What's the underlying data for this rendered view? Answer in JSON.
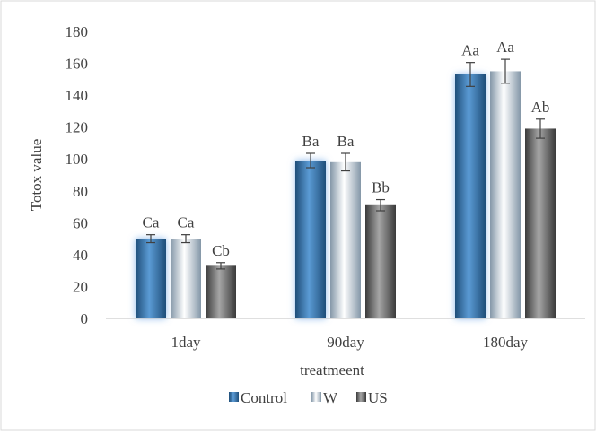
{
  "chart_data": {
    "type": "bar",
    "title": "",
    "xlabel": "treatmeent",
    "ylabel": "Totox value",
    "ylim": [
      0,
      180
    ],
    "yticks": [
      0,
      20,
      40,
      60,
      80,
      100,
      120,
      140,
      160,
      180
    ],
    "categories": [
      "1day",
      "90day",
      "180day"
    ],
    "grid": false,
    "legend_position": "bottom",
    "series": [
      {
        "name": "Control",
        "values": [
          50,
          99,
          153
        ],
        "errors": [
          2.5,
          4.5,
          7.5
        ],
        "labels": [
          "Ca",
          "Ba",
          "Aa"
        ],
        "color": "#2e75b6"
      },
      {
        "name": "W",
        "values": [
          50,
          98,
          155
        ],
        "errors": [
          2.5,
          5.5,
          7.5
        ],
        "labels": [
          "Ca",
          "Ba",
          "Aa"
        ],
        "color": "#dde6ee"
      },
      {
        "name": "US",
        "values": [
          33,
          71,
          119
        ],
        "errors": [
          2.0,
          3.5,
          6.0
        ],
        "labels": [
          "Cb",
          "Bb",
          "Ab"
        ],
        "color": "#6e6e6e"
      }
    ]
  }
}
